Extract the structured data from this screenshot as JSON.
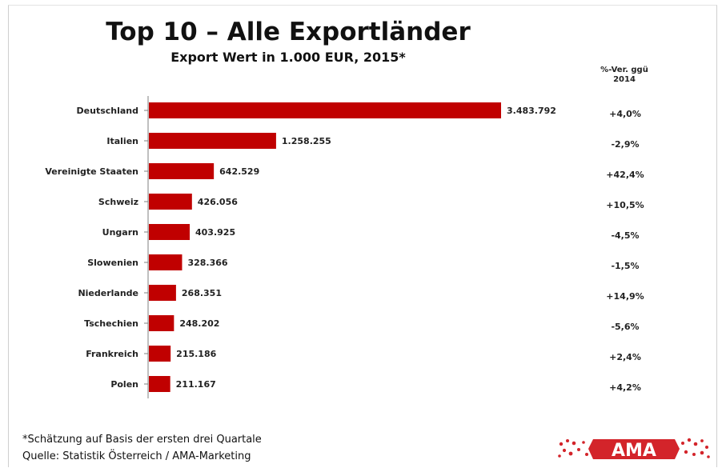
{
  "slide": {
    "title": "Top 10 – Alle Exportländer",
    "subtitle": "Export Wert in 1.000 EUR, 2015*",
    "pct_header_line1": "%-Ver. ggü",
    "pct_header_line2": "2014",
    "footnote": "*Schätzung auf Basis der ersten drei Quartale",
    "source": "Quelle: Statistik Österreich / AMA-Marketing",
    "logo_text": "AMA",
    "colors": {
      "bar": "#c00000",
      "logo": "#d3242a"
    }
  },
  "chart_data": {
    "type": "bar",
    "orientation": "horizontal",
    "title": "Top 10 – Alle Exportländer",
    "subtitle": "Export Wert in 1.000 EUR, 2015*",
    "categories": [
      "Deutschland",
      "Italien",
      "Vereinigte Staaten",
      "Schweiz",
      "Ungarn",
      "Slowenien",
      "Niederlande",
      "Tschechien",
      "Frankreich",
      "Polen"
    ],
    "values": [
      3483792,
      1258255,
      642529,
      426056,
      403925,
      328366,
      268351,
      248202,
      215186,
      211167
    ],
    "value_labels": [
      "3.483.792",
      "1.258.255",
      "642.529",
      "426.056",
      "403.925",
      "328.366",
      "268.351",
      "248.202",
      "215.186",
      "211.167"
    ],
    "change_vs_2014": [
      "+4,0%",
      "-2,9%",
      "+42,4%",
      "+10,5%",
      "-4,5%",
      "-1,5%",
      "+14,9%",
      "-5,6%",
      "+2,4%",
      "+4,2%"
    ],
    "xlim": [
      0,
      3483792
    ],
    "grid": false,
    "legend": "none"
  }
}
